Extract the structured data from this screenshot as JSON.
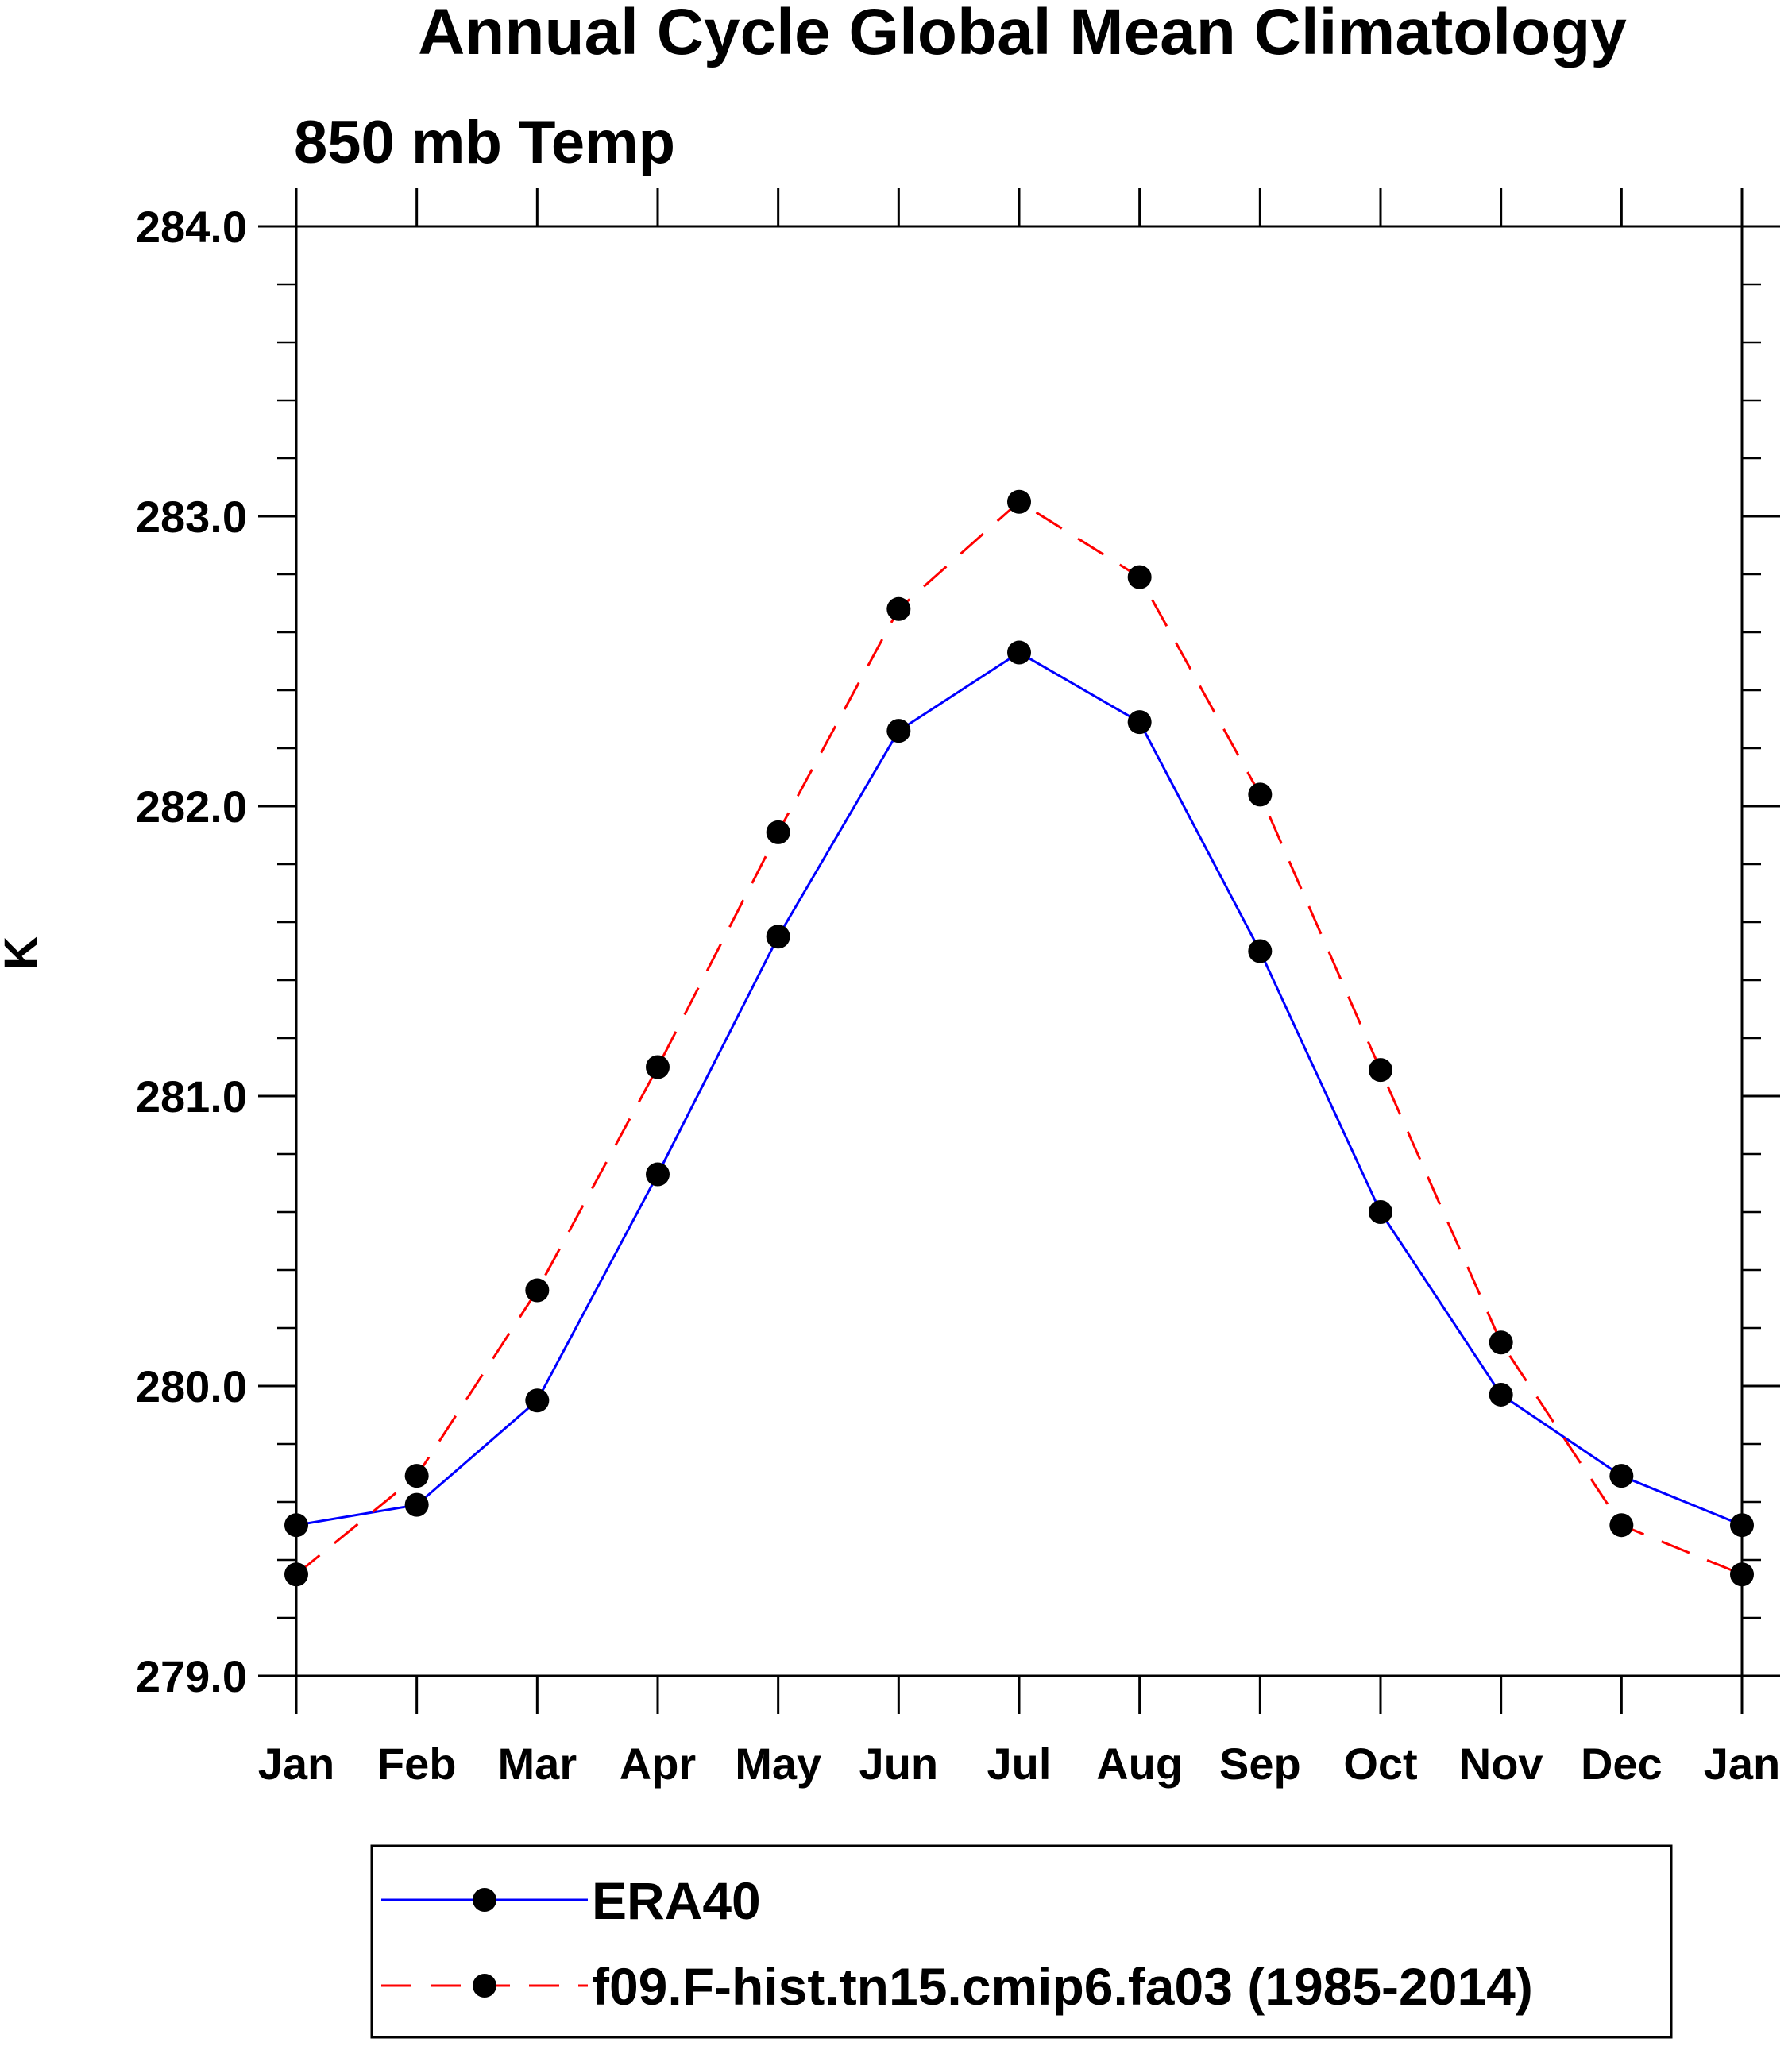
{
  "chart_data": {
    "type": "line",
    "title": "Annual Cycle Global Mean Climatology",
    "subtitle": "850 mb Temp",
    "xlabel": "",
    "ylabel": "K",
    "categories": [
      "Jan",
      "Feb",
      "Mar",
      "Apr",
      "May",
      "Jun",
      "Jul",
      "Aug",
      "Sep",
      "Oct",
      "Nov",
      "Dec",
      "Jan"
    ],
    "ylim": [
      279.0,
      284.0
    ],
    "ytick_labels": [
      "279.0",
      "280.0",
      "281.0",
      "282.0",
      "283.0",
      "284.0"
    ],
    "yticks": [
      279.0,
      280.0,
      281.0,
      282.0,
      283.0,
      284.0
    ],
    "y_minor_step": 0.2,
    "grid": false,
    "legend_position": "bottom",
    "series": [
      {
        "name": "ERA40",
        "color": "#0000ff",
        "dash": "solid",
        "marker": "filled-circle",
        "values": [
          279.52,
          279.59,
          279.95,
          280.73,
          281.55,
          282.26,
          282.53,
          282.29,
          281.5,
          280.6,
          279.97,
          279.69,
          279.52
        ]
      },
      {
        "name": "f09.F-hist.tn15.cmip6.fa03 (1985-2014)",
        "color": "#ff0000",
        "dash": "dashed",
        "marker": "filled-circle",
        "values": [
          279.35,
          279.69,
          280.33,
          281.1,
          281.91,
          282.68,
          283.05,
          282.79,
          282.04,
          281.09,
          280.15,
          279.52,
          279.35
        ]
      }
    ]
  }
}
